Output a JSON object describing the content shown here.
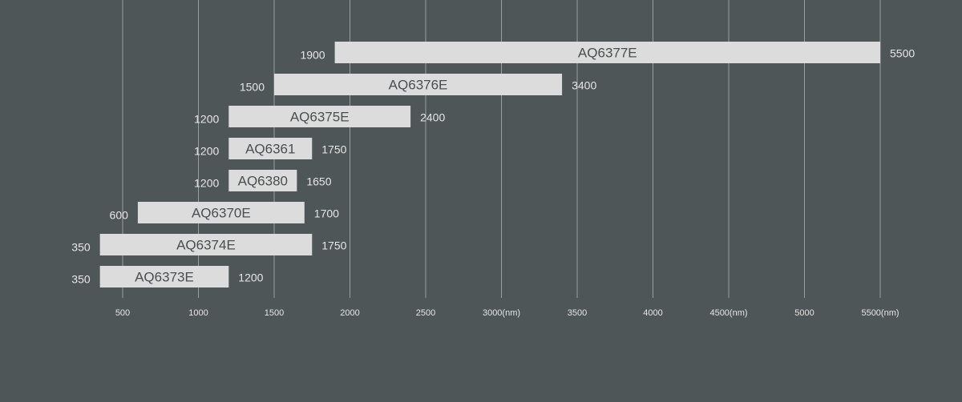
{
  "colors": {
    "background": "#4f5657",
    "bar": "#dcdcdc",
    "bar_text": "#4a4e50",
    "label_text": "#e6e6e6",
    "grid": "#9aa0a1"
  },
  "chart_data": {
    "type": "bar",
    "orientation": "horizontal-range",
    "title": "",
    "xlabel": "",
    "ylabel": "",
    "x_unit": "nm",
    "xlim": [
      130,
      5550
    ],
    "grid": true,
    "x_ticks": [
      {
        "value": 500,
        "label": "500"
      },
      {
        "value": 1000,
        "label": "1000"
      },
      {
        "value": 1500,
        "label": "1500"
      },
      {
        "value": 2000,
        "label": "2000"
      },
      {
        "value": 2500,
        "label": "2500"
      },
      {
        "value": 3000,
        "label": "3000(nm)"
      },
      {
        "value": 3500,
        "label": "3500"
      },
      {
        "value": 4000,
        "label": "4000"
      },
      {
        "value": 4500,
        "label": "4500(nm)"
      },
      {
        "value": 5000,
        "label": "5000"
      },
      {
        "value": 5500,
        "label": "5500(nm)"
      }
    ],
    "bars": [
      {
        "name": "AQ6377E",
        "start": 1900,
        "end": 5500,
        "start_label": "1900",
        "end_label": "5500"
      },
      {
        "name": "AQ6376E",
        "start": 1500,
        "end": 3400,
        "start_label": "1500",
        "end_label": "3400"
      },
      {
        "name": "AQ6375E",
        "start": 1200,
        "end": 2400,
        "start_label": "1200",
        "end_label": "2400"
      },
      {
        "name": "AQ6361",
        "start": 1200,
        "end": 1750,
        "start_label": "1200",
        "end_label": "1750"
      },
      {
        "name": "AQ6380",
        "start": 1200,
        "end": 1650,
        "start_label": "1200",
        "end_label": "1650"
      },
      {
        "name": "AQ6370E",
        "start": 600,
        "end": 1700,
        "start_label": "600",
        "end_label": "1700"
      },
      {
        "name": "AQ6374E",
        "start": 350,
        "end": 1750,
        "start_label": "350",
        "end_label": "1750"
      },
      {
        "name": "AQ6373E",
        "start": 350,
        "end": 1200,
        "start_label": "350",
        "end_label": "1200"
      }
    ]
  }
}
